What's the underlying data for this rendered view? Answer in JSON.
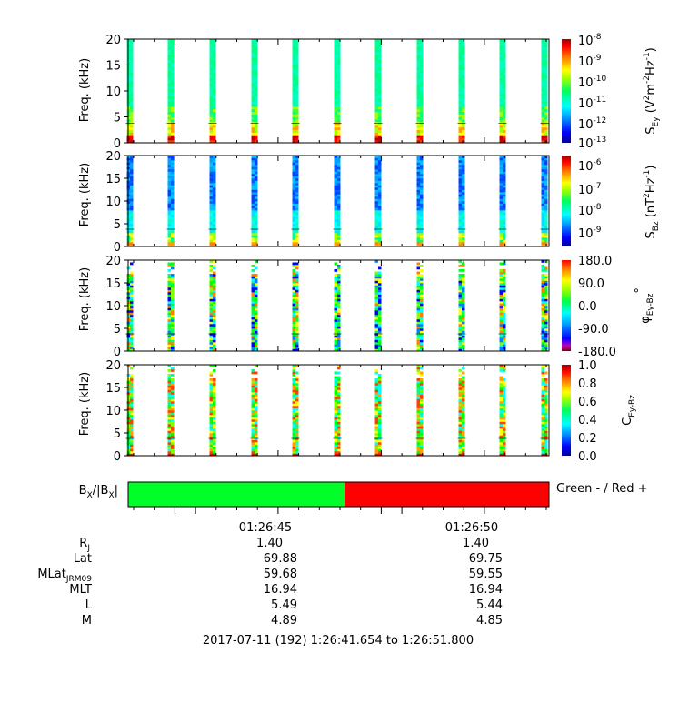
{
  "chart_data": [
    {
      "type": "heatmap",
      "ylabel": "Freq. (kHz)",
      "ylim": [
        0,
        20
      ],
      "yticks": [
        "0",
        "5",
        "10",
        "15",
        "20"
      ],
      "colorbar": {
        "label_main": "S",
        "label_sub": "Ey",
        "units": "(V",
        "units_sup": "2",
        "units_mid": "m",
        "units_sup2": "-2",
        "units_end": "Hz",
        "units_sup3": "-1",
        "units_close": ")",
        "ticks": [
          "10-8",
          "10-9",
          "10-10",
          "10-11",
          "10-12",
          "10-13"
        ],
        "tick_base": "10",
        "tick_exps": [
          "-8",
          "-9",
          "-10",
          "-11",
          "-12",
          "-13"
        ],
        "scale": "log"
      }
    },
    {
      "type": "heatmap",
      "ylabel": "Freq. (kHz)",
      "ylim": [
        0,
        20
      ],
      "yticks": [
        "0",
        "5",
        "10",
        "15",
        "20"
      ],
      "colorbar": {
        "label_main": "S",
        "label_sub": "Bz",
        "units": "(nT",
        "units_sup": "2",
        "units_end": "Hz",
        "units_sup3": "-1",
        "units_close": ")",
        "tick_base": "10",
        "tick_exps": [
          "-6",
          "-7",
          "-8",
          "-9"
        ],
        "scale": "log"
      }
    },
    {
      "type": "heatmap",
      "ylabel": "Freq. (kHz)",
      "ylim": [
        0,
        20
      ],
      "yticks": [
        "0",
        "5",
        "10",
        "15",
        "20"
      ],
      "colorbar": {
        "label_main": "φ",
        "label_sub": "Ey-Bz",
        "units_sup": "°",
        "ticks": [
          "180.0",
          "90.0",
          "0.0",
          "-90.0",
          "-180.0"
        ],
        "scale": "linear"
      }
    },
    {
      "type": "heatmap",
      "ylabel": "Freq. (kHz)",
      "ylim": [
        0,
        20
      ],
      "yticks": [
        "0",
        "5",
        "10",
        "15",
        "20"
      ],
      "colorbar": {
        "label_main": "C",
        "label_sub": "Ey-Bz",
        "ticks": [
          "1.0",
          "0.8",
          "0.6",
          "0.4",
          "0.2",
          "0.0"
        ],
        "scale": "linear"
      }
    },
    {
      "type": "bar",
      "label_main": "B",
      "label_sub": "X",
      "label_mid": "/|B",
      "label_sub2": "X",
      "label_end": "|",
      "segments": [
        {
          "color": "#00ff28",
          "fraction": 0.515
        },
        {
          "color": "#ff0000",
          "fraction": 0.485
        }
      ],
      "legend": "Green - / Red +"
    }
  ],
  "ephemeris": {
    "times": [
      "01:26:45",
      "01:26:50"
    ],
    "rows": [
      {
        "label": "R",
        "sub": "J",
        "values": [
          "1.40",
          "1.40"
        ]
      },
      {
        "label": "Lat",
        "sub": "",
        "values": [
          "69.88",
          "69.75"
        ]
      },
      {
        "label": "MLat",
        "sub": "JRM09",
        "values": [
          "59.68",
          "59.55"
        ]
      },
      {
        "label": "MLT",
        "sub": "",
        "values": [
          "16.94",
          "16.94"
        ]
      },
      {
        "label": "L",
        "sub": "",
        "values": [
          "5.49",
          "5.44"
        ]
      },
      {
        "label": "M",
        "sub": "",
        "values": [
          "4.89",
          "4.85"
        ]
      }
    ],
    "footer": "2017-07-11 (192) 1:26:41.654 to 1:26:51.800"
  },
  "colors": {
    "rainbow": [
      "#000090",
      "#0000ff",
      "#0080ff",
      "#00ffff",
      "#00ff80",
      "#00ff00",
      "#80ff00",
      "#ffff00",
      "#ffa000",
      "#ff4000",
      "#ff0000",
      "#a00000"
    ]
  }
}
